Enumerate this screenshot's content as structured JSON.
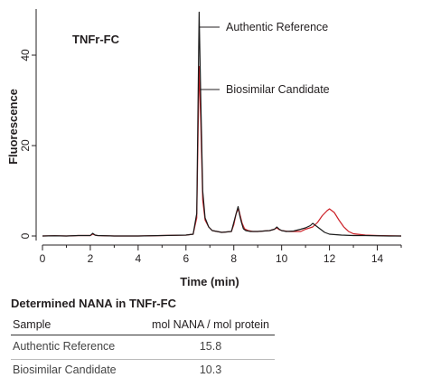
{
  "chart_data": {
    "type": "line",
    "title": "",
    "inset_label": "TNFr-FC",
    "xlabel": "Time (min)",
    "ylabel": "Fluorescence",
    "xlim": [
      0,
      15
    ],
    "ylim": [
      -1,
      50
    ],
    "x_ticks": [
      0,
      2,
      4,
      6,
      8,
      10,
      12,
      14
    ],
    "y_ticks": [
      0,
      20,
      40
    ],
    "x_minor_ticks": [
      1,
      3,
      5,
      7,
      9,
      11,
      13,
      15
    ],
    "grid": false,
    "colors": {
      "reference": "#1a1a1a",
      "candidate": "#cc2027",
      "axis": "#231f20"
    },
    "annotations": [
      {
        "text": "Authentic Reference",
        "series": "Authentic Reference"
      },
      {
        "text": "Biosimilar Candidate",
        "series": "Biosimilar Candidate"
      }
    ],
    "series": [
      {
        "name": "Authentic Reference",
        "color": "#1a1a1a",
        "x": [
          0.0,
          0.5,
          1.0,
          1.5,
          2.0,
          2.1,
          2.2,
          2.3,
          3.0,
          4.0,
          5.0,
          6.0,
          6.3,
          6.45,
          6.55,
          6.62,
          6.7,
          6.8,
          6.95,
          7.1,
          7.5,
          7.9,
          8.0,
          8.1,
          8.18,
          8.25,
          8.32,
          8.4,
          8.5,
          8.7,
          9.0,
          9.5,
          9.7,
          9.8,
          9.9,
          10.0,
          10.2,
          10.5,
          10.8,
          11.0,
          11.2,
          11.3,
          11.4,
          11.6,
          11.8,
          12.0,
          12.5,
          13.0,
          13.5,
          14.0,
          14.5,
          15.0
        ],
        "y": [
          0.0,
          0.05,
          0.0,
          0.1,
          0.1,
          0.6,
          0.2,
          0.1,
          0.0,
          0.0,
          0.1,
          0.2,
          0.4,
          5.0,
          49.5,
          30.0,
          10.0,
          4.0,
          2.0,
          1.2,
          0.8,
          1.0,
          3.0,
          5.0,
          6.5,
          4.5,
          3.0,
          1.6,
          1.2,
          1.0,
          1.0,
          1.2,
          1.5,
          2.0,
          1.5,
          1.2,
          1.0,
          1.1,
          1.5,
          1.8,
          2.3,
          2.8,
          2.4,
          1.6,
          0.8,
          0.4,
          0.2,
          0.1,
          0.1,
          0.05,
          0.0,
          0.0
        ]
      },
      {
        "name": "Biosimilar Candidate",
        "color": "#cc2027",
        "x": [
          0.0,
          0.5,
          1.0,
          1.5,
          2.0,
          2.1,
          2.2,
          2.3,
          3.0,
          4.0,
          5.0,
          6.0,
          6.3,
          6.45,
          6.55,
          6.62,
          6.7,
          6.8,
          6.95,
          7.1,
          7.5,
          7.9,
          8.0,
          8.1,
          8.2,
          8.27,
          8.35,
          8.45,
          8.6,
          8.8,
          9.0,
          9.5,
          9.7,
          9.8,
          9.9,
          10.0,
          10.3,
          10.8,
          11.0,
          11.3,
          11.5,
          11.7,
          11.9,
          12.0,
          12.2,
          12.4,
          12.6,
          12.8,
          13.0,
          13.5,
          14.0,
          15.0
        ],
        "y": [
          0.0,
          0.05,
          0.0,
          0.1,
          0.1,
          0.4,
          0.2,
          0.1,
          0.0,
          0.0,
          0.1,
          0.2,
          0.4,
          4.0,
          37.5,
          25.0,
          8.0,
          3.5,
          2.0,
          1.2,
          0.8,
          1.0,
          2.5,
          5.0,
          6.0,
          4.5,
          2.8,
          1.6,
          1.2,
          1.0,
          1.0,
          1.2,
          1.5,
          1.8,
          1.4,
          1.2,
          1.0,
          1.0,
          1.5,
          2.0,
          3.0,
          4.5,
          5.6,
          6.0,
          5.2,
          3.5,
          2.0,
          1.0,
          0.5,
          0.2,
          0.1,
          0.0
        ]
      }
    ]
  },
  "table": {
    "title": "Determined NANA in TNFr-FC",
    "headers": [
      "Sample",
      "mol NANA / mol protein"
    ],
    "rows": [
      {
        "sample": "Authentic Reference",
        "value": "15.8"
      },
      {
        "sample": "Biosimilar Candidate",
        "value": "10.3"
      }
    ]
  }
}
